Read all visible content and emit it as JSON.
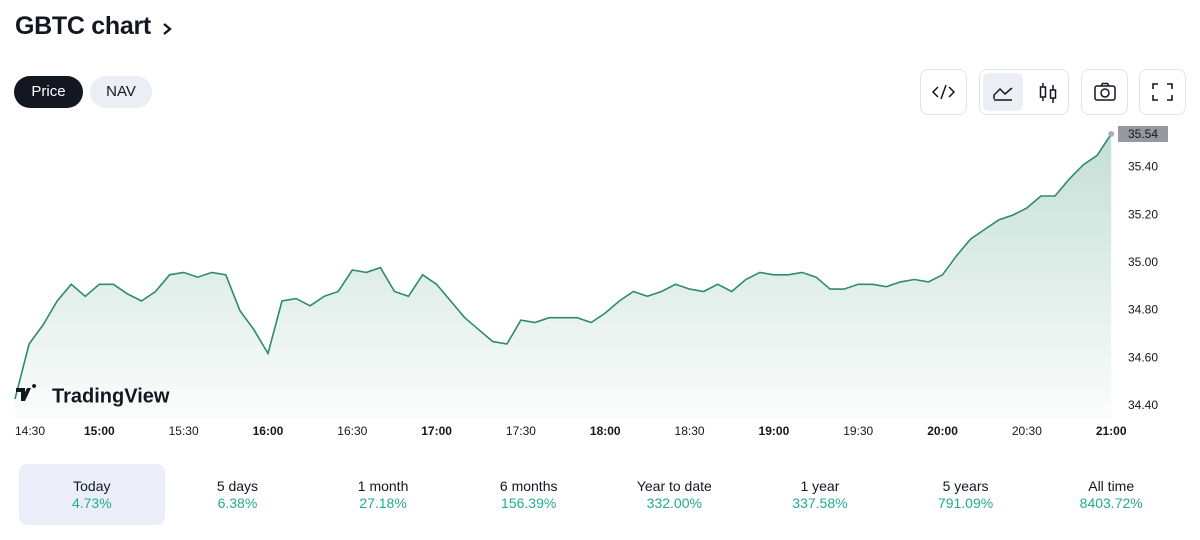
{
  "header": {
    "title": "GBTC chart"
  },
  "tabs": [
    "Price",
    "NAV"
  ],
  "watermark": "TradingView",
  "chart_data": {
    "type": "line",
    "x": [
      "14:30",
      "14:35",
      "14:40",
      "14:45",
      "14:50",
      "14:55",
      "15:00",
      "15:05",
      "15:10",
      "15:15",
      "15:20",
      "15:25",
      "15:30",
      "15:35",
      "15:40",
      "15:45",
      "15:50",
      "15:55",
      "16:00",
      "16:05",
      "16:10",
      "16:15",
      "16:20",
      "16:25",
      "16:30",
      "16:35",
      "16:40",
      "16:45",
      "16:50",
      "16:55",
      "17:00",
      "17:05",
      "17:10",
      "17:15",
      "17:20",
      "17:25",
      "17:30",
      "17:35",
      "17:40",
      "17:45",
      "17:50",
      "17:55",
      "18:00",
      "18:05",
      "18:10",
      "18:15",
      "18:20",
      "18:25",
      "18:30",
      "18:35",
      "18:40",
      "18:45",
      "18:50",
      "18:55",
      "19:00",
      "19:05",
      "19:10",
      "19:15",
      "19:20",
      "19:25",
      "19:30",
      "19:35",
      "19:40",
      "19:45",
      "19:50",
      "19:55",
      "20:00",
      "20:05",
      "20:10",
      "20:15",
      "20:20",
      "20:25",
      "20:30",
      "20:35",
      "20:40",
      "20:45",
      "20:50",
      "20:55",
      "21:00"
    ],
    "values": [
      34.43,
      34.66,
      34.74,
      34.84,
      34.91,
      34.86,
      34.91,
      34.91,
      34.87,
      34.84,
      34.88,
      34.95,
      34.96,
      34.94,
      34.96,
      34.95,
      34.8,
      34.72,
      34.62,
      34.84,
      34.85,
      34.82,
      34.86,
      34.88,
      34.97,
      34.96,
      34.98,
      34.88,
      34.86,
      34.95,
      34.91,
      34.84,
      34.77,
      34.72,
      34.67,
      34.66,
      34.76,
      34.75,
      34.77,
      34.77,
      34.77,
      34.75,
      34.79,
      34.84,
      34.88,
      34.86,
      34.88,
      34.91,
      34.89,
      34.88,
      34.91,
      34.88,
      34.93,
      34.96,
      34.95,
      34.95,
      34.96,
      34.94,
      34.89,
      34.89,
      34.91,
      34.91,
      34.9,
      34.92,
      34.93,
      34.92,
      34.95,
      35.03,
      35.1,
      35.14,
      35.18,
      35.2,
      35.23,
      35.28,
      35.28,
      35.35,
      35.41,
      35.45,
      35.54
    ],
    "color": "#2e8b6e",
    "xlim": [
      "14:30",
      "21:01"
    ],
    "xticks": [
      "14:30",
      "15:00",
      "15:30",
      "16:00",
      "16:30",
      "17:00",
      "17:30",
      "18:00",
      "18:30",
      "19:00",
      "19:30",
      "20:00",
      "20:30",
      "21:00"
    ],
    "ylim": [
      34.375,
      35.565
    ],
    "yticks": [
      {
        "value": 34.4,
        "label": "34.40"
      },
      {
        "value": 34.6,
        "label": "34.60"
      },
      {
        "value": 34.8,
        "label": "34.80"
      },
      {
        "value": 35.0,
        "label": "35.00"
      },
      {
        "value": 35.2,
        "label": "35.20"
      },
      {
        "value": 35.4,
        "label": "35.40"
      }
    ],
    "grid": false
  },
  "periods": [
    {
      "label": "Today",
      "change": "4.73%"
    },
    {
      "label": "5 days",
      "change": "6.38%"
    },
    {
      "label": "1 month",
      "change": "27.18%"
    },
    {
      "label": "6 months",
      "change": "156.39%"
    },
    {
      "label": "Year to date",
      "change": "332.00%"
    },
    {
      "label": "1 year",
      "change": "337.58%"
    },
    {
      "label": "5 years",
      "change": "791.09%"
    },
    {
      "label": "All time",
      "change": "8403.72%"
    }
  ]
}
